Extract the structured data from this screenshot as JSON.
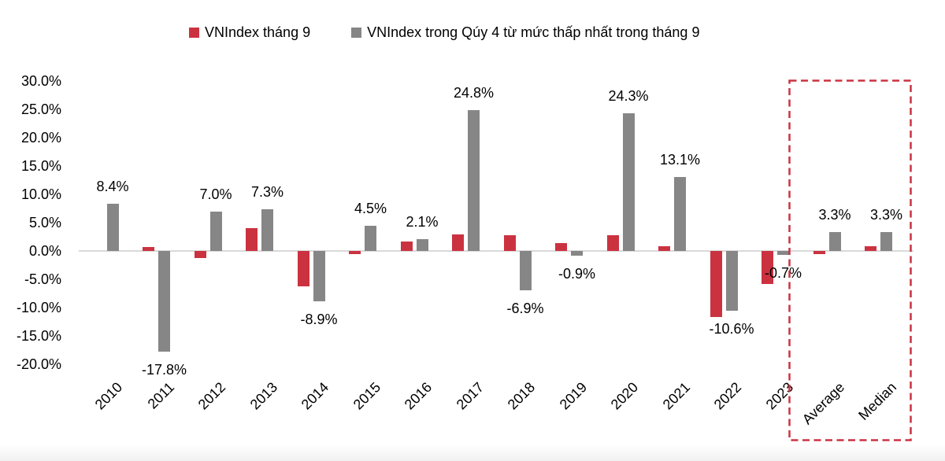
{
  "legend": {
    "series1_label": "VNIndex tháng 9",
    "series2_label": "VNIndex trong Qúy 4 từ mức thấp nhất trong tháng 9"
  },
  "colors": {
    "series1": "#CB3240",
    "series2": "#868686",
    "axis_line": "#D9D9D9",
    "highlight_box": "#CB3240"
  },
  "chart_data": {
    "type": "bar",
    "title": "",
    "xlabel": "",
    "ylabel": "",
    "categories": [
      "2010",
      "2011",
      "2012",
      "2013",
      "2014",
      "2015",
      "2016",
      "2017",
      "2018",
      "2019",
      "2020",
      "2021",
      "2022",
      "2023",
      "Average",
      "Median"
    ],
    "series": [
      {
        "name": "VNIndex tháng 9",
        "color": "#CB3240",
        "values": [
          0.0,
          0.7,
          -1.2,
          4.0,
          -6.2,
          -0.6,
          1.6,
          2.9,
          2.8,
          1.4,
          2.8,
          0.8,
          -11.6,
          -5.8,
          -0.5,
          0.8
        ]
      },
      {
        "name": "VNIndex trong Qúy 4 từ mức thấp nhất trong tháng 9",
        "color": "#868686",
        "values": [
          8.4,
          -17.8,
          7.0,
          7.3,
          -8.9,
          4.5,
          2.1,
          24.8,
          -6.9,
          -0.9,
          24.3,
          13.1,
          -10.6,
          -0.7,
          3.3,
          3.3
        ],
        "data_labels": [
          "8.4%",
          "-17.8%",
          "7.0%",
          "7.3%",
          "-8.9%",
          "4.5%",
          "2.1%",
          "24.8%",
          "-6.9%",
          "-0.9%",
          "24.3%",
          "13.1%",
          "-10.6%",
          "-0.7%",
          "3.3%",
          "3.3%"
        ]
      }
    ],
    "y_axis": {
      "tick_labels": [
        "30.0%",
        "25.0%",
        "20.0%",
        "15.0%",
        "10.0%",
        "5.0%",
        "0.0%",
        "-5.0%",
        "-10.0%",
        "-15.0%",
        "-20.0%"
      ],
      "max": 30,
      "min": -20,
      "grid": false
    },
    "legend_position": "top",
    "highlight_box_categories": [
      "Average",
      "Median"
    ]
  }
}
